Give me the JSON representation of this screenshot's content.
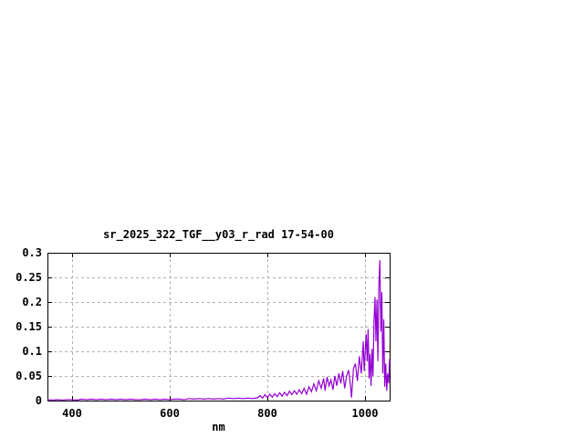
{
  "page": {
    "background": "#ffffff"
  },
  "chart_data": {
    "type": "line",
    "title": "sr_2025_322_TGF__y03_r_rad 17-54-00",
    "xlabel": "nm",
    "ylabel": "",
    "xlim": [
      350,
      1050
    ],
    "ylim": [
      0,
      0.3
    ],
    "grid": true,
    "legend": "none",
    "x_ticks": [
      {
        "value": 400,
        "label": "400"
      },
      {
        "value": 600,
        "label": "600"
      },
      {
        "value": 800,
        "label": "800"
      },
      {
        "value": 1000,
        "label": "1000"
      }
    ],
    "y_ticks": [
      {
        "value": 0,
        "label": "0"
      },
      {
        "value": 0.05,
        "label": "0.05"
      },
      {
        "value": 0.1,
        "label": "0.1"
      },
      {
        "value": 0.15,
        "label": "0.15"
      },
      {
        "value": 0.2,
        "label": "0.2"
      },
      {
        "value": 0.25,
        "label": "0.25"
      },
      {
        "value": 0.3,
        "label": "0.3"
      }
    ],
    "colors": {
      "line": "#9400d3",
      "grid": "#b0b0b0",
      "axis": "#000000",
      "text": "#000000"
    },
    "series": [
      {
        "name": "sr_2025_322_TGF__y03_r_rad 17-54-00",
        "points": [
          [
            350,
            0.002
          ],
          [
            360,
            0.001
          ],
          [
            370,
            0.002
          ],
          [
            380,
            0.001
          ],
          [
            390,
            0.002
          ],
          [
            400,
            0.002
          ],
          [
            410,
            0.001
          ],
          [
            420,
            0.003
          ],
          [
            430,
            0.002
          ],
          [
            440,
            0.003
          ],
          [
            450,
            0.002
          ],
          [
            460,
            0.003
          ],
          [
            470,
            0.002
          ],
          [
            480,
            0.003
          ],
          [
            490,
            0.002
          ],
          [
            500,
            0.003
          ],
          [
            510,
            0.002
          ],
          [
            520,
            0.003
          ],
          [
            530,
            0.002
          ],
          [
            540,
            0.002
          ],
          [
            550,
            0.003
          ],
          [
            560,
            0.002
          ],
          [
            570,
            0.003
          ],
          [
            580,
            0.002
          ],
          [
            590,
            0.003
          ],
          [
            600,
            0.002
          ],
          [
            610,
            0.003
          ],
          [
            620,
            0.003
          ],
          [
            630,
            0.002
          ],
          [
            640,
            0.004
          ],
          [
            650,
            0.003
          ],
          [
            660,
            0.004
          ],
          [
            670,
            0.003
          ],
          [
            680,
            0.004
          ],
          [
            690,
            0.003
          ],
          [
            700,
            0.004
          ],
          [
            710,
            0.003
          ],
          [
            720,
            0.005
          ],
          [
            730,
            0.004
          ],
          [
            740,
            0.005
          ],
          [
            750,
            0.004
          ],
          [
            760,
            0.005
          ],
          [
            770,
            0.004
          ],
          [
            780,
            0.006
          ],
          [
            785,
            0.01
          ],
          [
            790,
            0.005
          ],
          [
            795,
            0.012
          ],
          [
            800,
            0.006
          ],
          [
            805,
            0.013
          ],
          [
            810,
            0.007
          ],
          [
            815,
            0.014
          ],
          [
            820,
            0.008
          ],
          [
            825,
            0.016
          ],
          [
            830,
            0.009
          ],
          [
            835,
            0.017
          ],
          [
            840,
            0.01
          ],
          [
            845,
            0.019
          ],
          [
            850,
            0.012
          ],
          [
            855,
            0.02
          ],
          [
            860,
            0.013
          ],
          [
            865,
            0.022
          ],
          [
            870,
            0.014
          ],
          [
            875,
            0.025
          ],
          [
            880,
            0.013
          ],
          [
            885,
            0.028
          ],
          [
            890,
            0.018
          ],
          [
            895,
            0.034
          ],
          [
            900,
            0.02
          ],
          [
            905,
            0.04
          ],
          [
            910,
            0.025
          ],
          [
            915,
            0.045
          ],
          [
            918,
            0.02
          ],
          [
            922,
            0.048
          ],
          [
            926,
            0.03
          ],
          [
            930,
            0.042
          ],
          [
            934,
            0.022
          ],
          [
            938,
            0.05
          ],
          [
            942,
            0.03
          ],
          [
            946,
            0.055
          ],
          [
            950,
            0.035
          ],
          [
            954,
            0.06
          ],
          [
            958,
            0.025
          ],
          [
            962,
            0.05
          ],
          [
            966,
            0.062
          ],
          [
            970,
            0.03
          ],
          [
            972,
            0.006
          ],
          [
            976,
            0.065
          ],
          [
            980,
            0.075
          ],
          [
            984,
            0.04
          ],
          [
            988,
            0.09
          ],
          [
            992,
            0.055
          ],
          [
            996,
            0.12
          ],
          [
            998,
            0.06
          ],
          [
            1000,
            0.1
          ],
          [
            1002,
            0.135
          ],
          [
            1004,
            0.08
          ],
          [
            1006,
            0.145
          ],
          [
            1008,
            0.045
          ],
          [
            1010,
            0.095
          ],
          [
            1012,
            0.03
          ],
          [
            1014,
            0.105
          ],
          [
            1016,
            0.05
          ],
          [
            1018,
            0.16
          ],
          [
            1020,
            0.21
          ],
          [
            1022,
            0.12
          ],
          [
            1024,
            0.205
          ],
          [
            1026,
            0.08
          ],
          [
            1028,
            0.235
          ],
          [
            1030,
            0.285
          ],
          [
            1032,
            0.14
          ],
          [
            1034,
            0.22
          ],
          [
            1036,
            0.055
          ],
          [
            1038,
            0.165
          ],
          [
            1040,
            0.028
          ],
          [
            1042,
            0.075
          ],
          [
            1044,
            0.02
          ],
          [
            1046,
            0.055
          ],
          [
            1048,
            0.035
          ],
          [
            1050,
            0.085
          ]
        ]
      }
    ]
  }
}
